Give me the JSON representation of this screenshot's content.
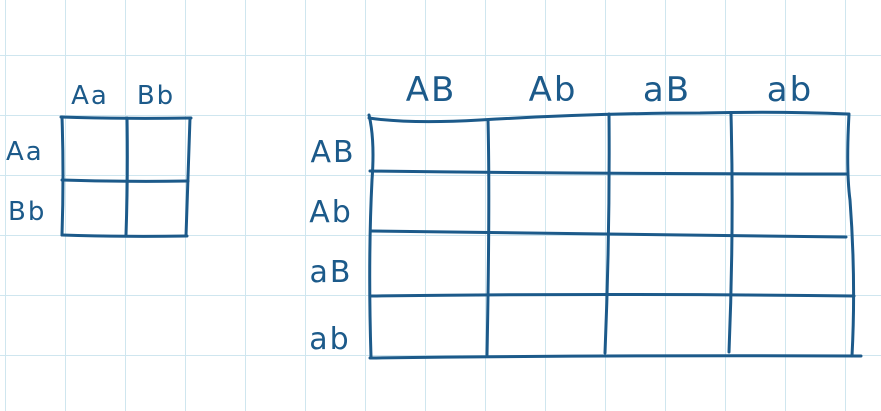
{
  "diagrams": {
    "small": {
      "columns": [
        "Aa",
        "Bb"
      ],
      "rows": [
        "Aa",
        "Bb"
      ]
    },
    "large": {
      "columns": [
        "AB",
        "Ab",
        "aB",
        "ab"
      ],
      "rows": [
        "AB",
        "Ab",
        "aB",
        "ab"
      ]
    }
  },
  "colors": {
    "ink": "#1c5a8a",
    "grid": "#cfe6ef",
    "background": "#ffffff"
  }
}
